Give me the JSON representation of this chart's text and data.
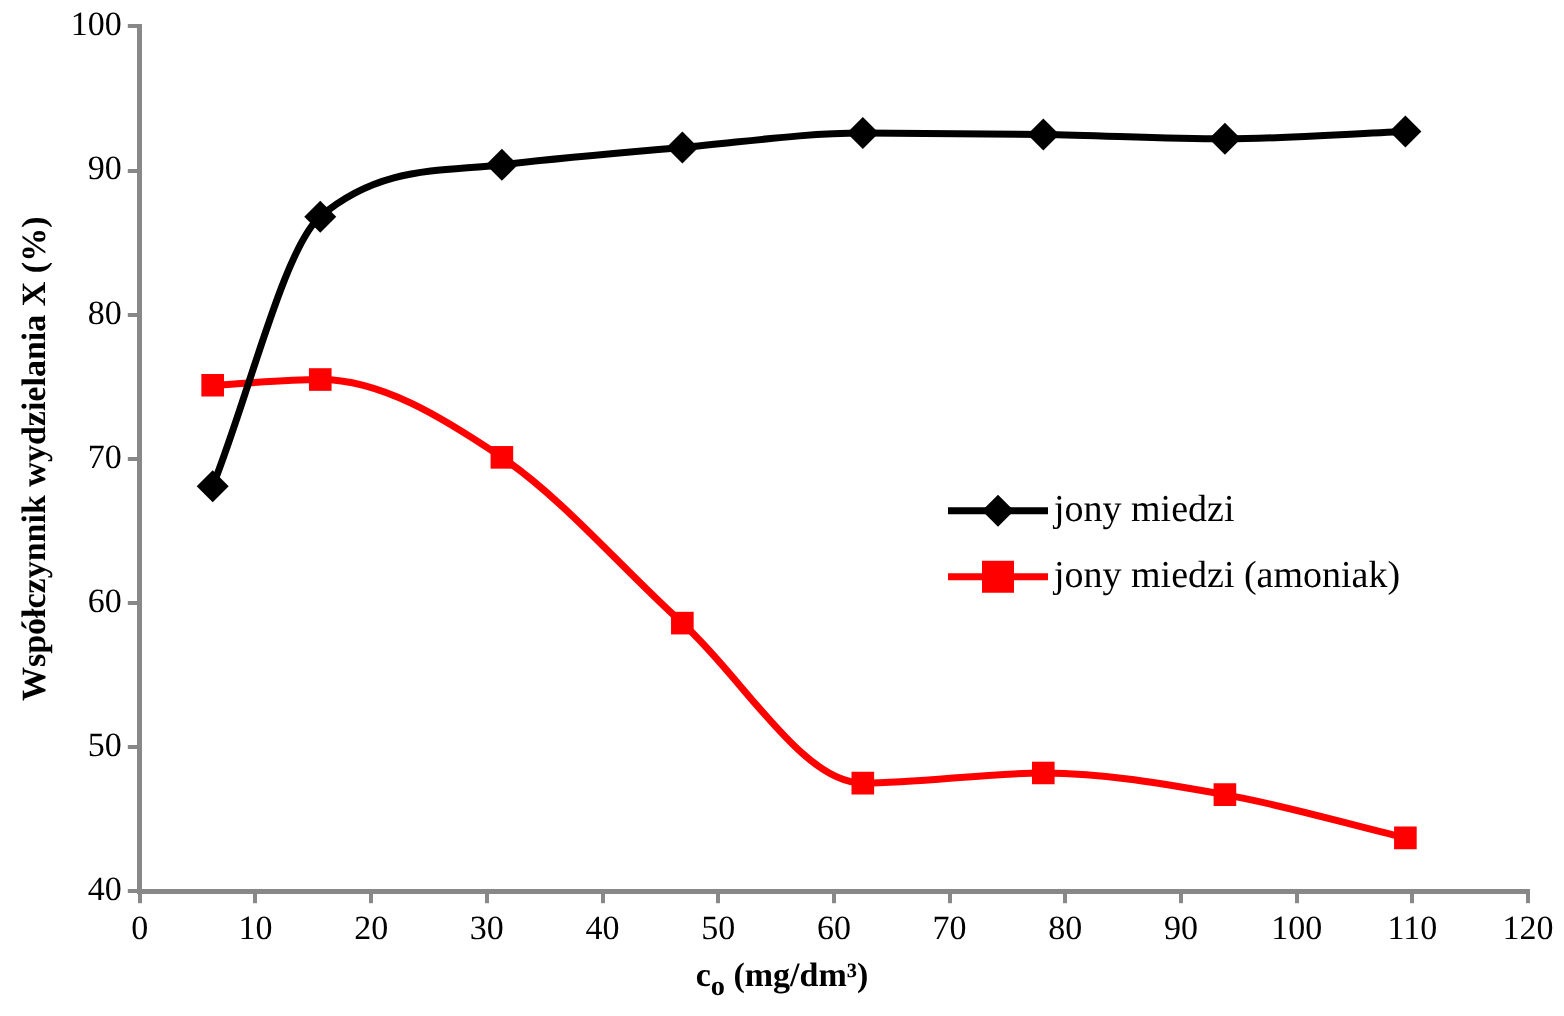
{
  "chart_data": {
    "type": "line",
    "xlabel": "c$_{o}$ (mg/dm³)",
    "ylabel": "Współczynnik wydzielania X (%)",
    "xlim": [
      0,
      120
    ],
    "xticks": [
      0,
      10,
      20,
      30,
      40,
      50,
      60,
      70,
      80,
      90,
      100,
      110,
      120
    ],
    "ylim": [
      40,
      100
    ],
    "yticks": [
      40,
      50,
      60,
      70,
      80,
      90,
      100
    ],
    "x": [
      6.3,
      15.6,
      31.3,
      46.9,
      62.5,
      78.1,
      93.8,
      109.4
    ],
    "series": [
      {
        "name": "jony miedzi",
        "color": "#000000",
        "marker": "diamond",
        "values": [
          68.1,
          86.8,
          90.4,
          91.6,
          92.6,
          92.5,
          92.2,
          92.7
        ]
      },
      {
        "name": "jony miedzi (amoniak)",
        "color": "#ff0000",
        "marker": "square",
        "values": [
          75.1,
          75.5,
          70.1,
          58.6,
          47.5,
          48.2,
          46.7,
          43.7
        ]
      }
    ],
    "grid": false,
    "legend": "right",
    "line_style": "solid"
  }
}
